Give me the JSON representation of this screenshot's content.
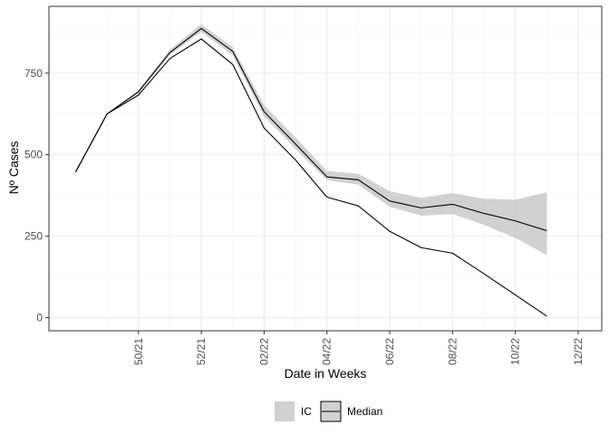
{
  "chart_data": {
    "type": "line",
    "title": "",
    "xlabel": "Date in Weeks",
    "ylabel": "Nº Cases",
    "x_tick_labels": [
      "50/21",
      "52/21",
      "02/22",
      "04/22",
      "06/22",
      "08/22",
      "10/22",
      "12/22"
    ],
    "x_tick_positions": [
      2,
      4,
      6,
      8,
      10,
      12,
      14,
      16
    ],
    "y_ticks": [
      0,
      250,
      500,
      750
    ],
    "ylim": [
      -40,
      955
    ],
    "xlim": [
      -0.85,
      16.75
    ],
    "x": [
      0,
      1,
      2,
      3,
      4,
      5,
      6,
      7,
      8,
      9,
      10,
      11,
      12,
      13,
      14,
      15,
      16
    ],
    "series": [
      {
        "name": "",
        "values": [
          447,
          625,
          683,
          795,
          855,
          777,
          582,
          484,
          370,
          343,
          265,
          215,
          198,
          135,
          70,
          5,
          null
        ]
      },
      {
        "name": "Median",
        "values": [
          447,
          625,
          693,
          813,
          887,
          817,
          632,
          533,
          432,
          423,
          358,
          337,
          348,
          320,
          297,
          267,
          null
        ]
      }
    ],
    "ribbon": {
      "name": "IC",
      "lower": [
        447,
        625,
        688,
        806,
        877,
        805,
        617,
        518,
        422,
        408,
        340,
        313,
        318,
        285,
        245,
        192,
        null
      ],
      "upper": [
        447,
        625,
        698,
        822,
        900,
        830,
        652,
        553,
        450,
        442,
        388,
        368,
        382,
        365,
        362,
        385,
        null
      ]
    },
    "grid": true,
    "legend_position": "bottom",
    "legend": [
      {
        "label": "IC",
        "kind": "ribbon",
        "color": "#bebebe"
      },
      {
        "label": "Median",
        "kind": "line",
        "color": "#000000"
      }
    ],
    "colors": {
      "line": "#000000",
      "ribbon": "#bebebe",
      "grid_major": "#ebebeb",
      "grid_minor": "#f5f5f5",
      "panel_border": "#333333",
      "tick_label": "#4d4d4d"
    }
  }
}
